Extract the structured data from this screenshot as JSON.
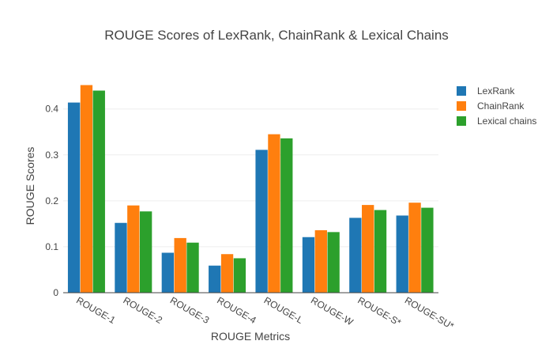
{
  "chart_data": {
    "type": "bar",
    "title": "ROUGE Scores of LexRank, ChainRank & Lexical Chains",
    "xlabel": "ROUGE Metrics",
    "ylabel": "ROUGE Scores",
    "categories": [
      "ROUGE-1",
      "ROUGE-2",
      "ROUGE-3",
      "ROUGE-4",
      "ROUGE-L",
      "ROUGE-W",
      "ROUGE-S*",
      "ROUGE-SU*"
    ],
    "series": [
      {
        "name": "LexRank",
        "color": "#1f77b4",
        "values": [
          0.414,
          0.152,
          0.087,
          0.059,
          0.311,
          0.121,
          0.163,
          0.168
        ]
      },
      {
        "name": "ChainRank",
        "color": "#ff7f0e",
        "values": [
          0.452,
          0.19,
          0.119,
          0.084,
          0.345,
          0.136,
          0.191,
          0.196
        ]
      },
      {
        "name": "Lexical chains",
        "color": "#2ca02c",
        "values": [
          0.44,
          0.177,
          0.109,
          0.075,
          0.336,
          0.132,
          0.18,
          0.185
        ]
      }
    ],
    "ylim": [
      0,
      0.465
    ],
    "yticks": [
      0,
      0.1,
      0.2,
      0.3,
      0.4
    ],
    "ytick_labels": [
      "0",
      "0.1",
      "0.2",
      "0.3",
      "0.4"
    ],
    "grid": true,
    "legend_position": "top-right"
  }
}
